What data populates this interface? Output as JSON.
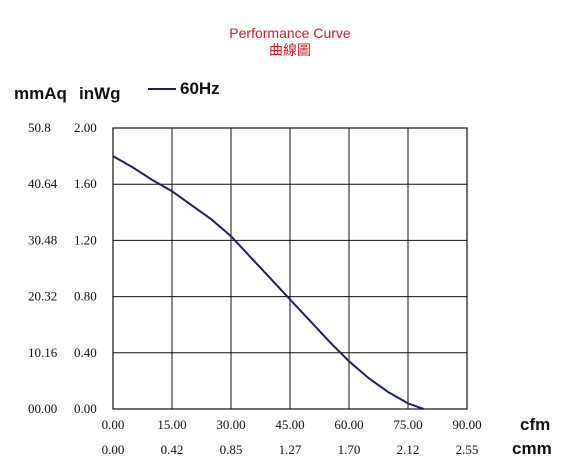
{
  "chart_data": {
    "type": "line",
    "title": "Performance Curve",
    "subtitle": "曲線圖",
    "y_units": {
      "left": "mmAq",
      "right": "inWg"
    },
    "x_units": {
      "primary": "cfm",
      "secondary": "cmm"
    },
    "x_ticks_cfm": [
      "0.00",
      "15.00",
      "30.00",
      "45.00",
      "60.00",
      "75.00",
      "90.00"
    ],
    "x_ticks_cmm": [
      "0.00",
      "0.42",
      "0.85",
      "1.27",
      "1.70",
      "2.12",
      "2.55"
    ],
    "y_ticks_mmaq": [
      "00.00",
      "10.16",
      "20.32",
      "30.48",
      "40.64",
      "50.8"
    ],
    "y_ticks_inwg": [
      "0.00",
      "0.40",
      "0.80",
      "1.20",
      "1.60",
      "2.00"
    ],
    "xlim": [
      0,
      90
    ],
    "ylim": [
      0,
      2.0
    ],
    "grid": true,
    "legend_position": "top-left",
    "series": [
      {
        "name": "60Hz",
        "color": "#1b2550",
        "x": [
          0,
          5,
          10,
          15,
          20,
          25,
          30,
          35,
          40,
          45,
          50,
          55,
          60,
          65,
          70,
          75,
          79
        ],
        "y": [
          1.8,
          1.72,
          1.63,
          1.55,
          1.45,
          1.35,
          1.23,
          1.08,
          0.93,
          0.78,
          0.63,
          0.48,
          0.34,
          0.22,
          0.12,
          0.04,
          0.0
        ]
      }
    ]
  }
}
